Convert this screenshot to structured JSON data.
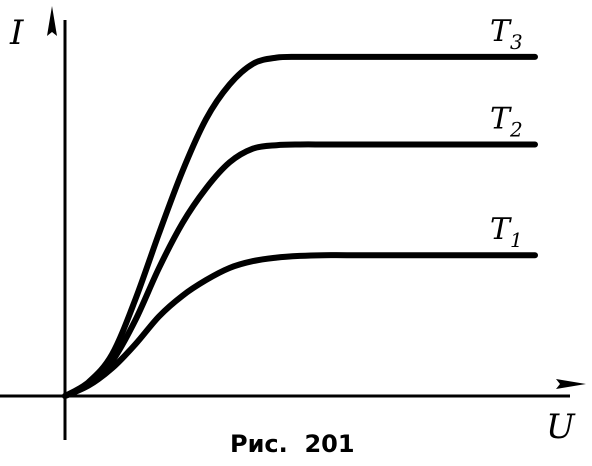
{
  "chart_data": {
    "type": "line",
    "title": "",
    "xlabel": "U",
    "ylabel": "I",
    "grid": false,
    "legend": "none",
    "xlim": [
      0,
      10
    ],
    "ylim": [
      0,
      10
    ],
    "series": [
      {
        "name": "T",
        "subscript": "1",
        "x": [
          0,
          0.5,
          1,
          1.5,
          2,
          2.5,
          3,
          3.5,
          4,
          4.5,
          5,
          5.5,
          6,
          7,
          8,
          9,
          10
        ],
        "values": [
          0,
          0.3,
          0.8,
          1.5,
          2.3,
          2.9,
          3.35,
          3.7,
          3.9,
          4.0,
          4.05,
          4.07,
          4.07,
          4.07,
          4.07,
          4.07,
          4.07
        ]
      },
      {
        "name": "T",
        "subscript": "2",
        "x": [
          0,
          0.5,
          1,
          1.5,
          2,
          2.5,
          3,
          3.5,
          4,
          4.5,
          5,
          5.5,
          6,
          7,
          8,
          9,
          10
        ],
        "values": [
          0,
          0.35,
          1.0,
          2.2,
          3.7,
          5.0,
          6.0,
          6.75,
          7.15,
          7.25,
          7.27,
          7.27,
          7.27,
          7.27,
          7.27,
          7.27,
          7.27
        ]
      },
      {
        "name": "T",
        "subscript": "3",
        "x": [
          0,
          0.5,
          1,
          1.5,
          2,
          2.5,
          3,
          3.5,
          4,
          4.5,
          5,
          5.5,
          6,
          7,
          8,
          9,
          10
        ],
        "values": [
          0,
          0.4,
          1.2,
          2.8,
          4.7,
          6.5,
          8.0,
          9.0,
          9.6,
          9.78,
          9.8,
          9.8,
          9.8,
          9.8,
          9.8,
          9.8,
          9.8
        ]
      }
    ],
    "caption": "Рис.  201"
  }
}
